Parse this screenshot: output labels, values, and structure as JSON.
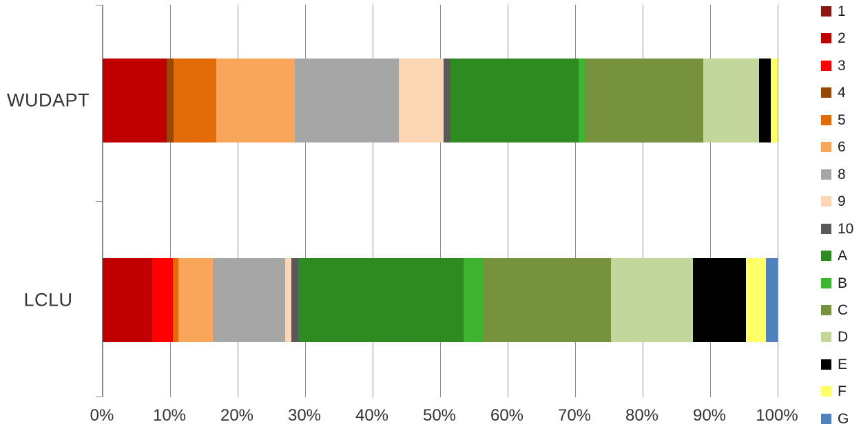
{
  "chart_data": {
    "type": "bar",
    "orientation": "horizontal",
    "stacked": true,
    "title": "",
    "xlabel": "",
    "ylabel": "",
    "xlim": [
      0,
      100
    ],
    "grid": true,
    "legend_position": "right",
    "categories": [
      "WUDAPT",
      "LCLU"
    ],
    "x_ticks": [
      "0%",
      "10%",
      "20%",
      "30%",
      "40%",
      "50%",
      "60%",
      "70%",
      "80%",
      "90%",
      "100%"
    ],
    "series": [
      {
        "name": "1",
        "color": "#8B1612",
        "values": [
          0,
          0
        ]
      },
      {
        "name": "2",
        "color": "#C00000",
        "values": [
          9.5,
          7.3
        ]
      },
      {
        "name": "3",
        "color": "#FF0000",
        "values": [
          0,
          3.1
        ]
      },
      {
        "name": "4",
        "color": "#974706",
        "values": [
          1,
          0
        ]
      },
      {
        "name": "5",
        "color": "#E36C09",
        "values": [
          6.3,
          0.8
        ]
      },
      {
        "name": "6",
        "color": "#F9A65A",
        "values": [
          11.7,
          5.1
        ]
      },
      {
        "name": "8",
        "color": "#A6A6A6",
        "values": [
          15.4,
          10.7
        ]
      },
      {
        "name": "9",
        "color": "#FCD5B4",
        "values": [
          6.6,
          1
        ]
      },
      {
        "name": "10",
        "color": "#595959",
        "values": [
          1,
          1
        ]
      },
      {
        "name": "A",
        "color": "#2E8B22",
        "values": [
          19,
          24.5
        ]
      },
      {
        "name": "B",
        "color": "#3EB531",
        "values": [
          1,
          2.8
        ]
      },
      {
        "name": "C",
        "color": "#76923C",
        "values": [
          17.5,
          19
        ]
      },
      {
        "name": "D",
        "color": "#C3D69B",
        "values": [
          8.3,
          12.2
        ]
      },
      {
        "name": "E",
        "color": "#000000",
        "values": [
          1.7,
          7.8
        ]
      },
      {
        "name": "F",
        "color": "#FFFF66",
        "values": [
          1,
          3
        ]
      },
      {
        "name": "G",
        "color": "#4F81BD",
        "values": [
          0,
          1.7
        ]
      }
    ]
  }
}
